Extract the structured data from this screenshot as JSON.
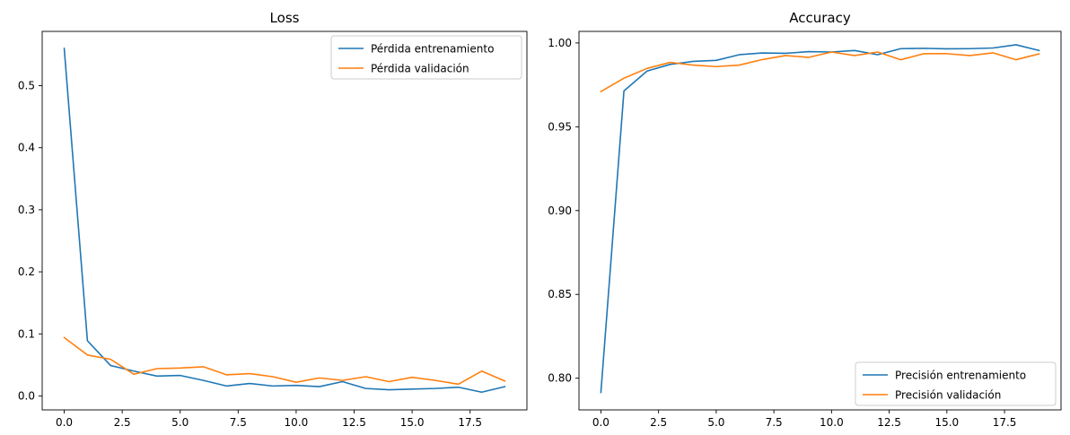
{
  "chart_data": [
    {
      "type": "line",
      "title": "Loss",
      "xlabel": "",
      "ylabel": "",
      "xlim": [
        -0.95,
        19.95
      ],
      "ylim": [
        -0.0225,
        0.5875
      ],
      "xticks": [
        0.0,
        2.5,
        5.0,
        7.5,
        10.0,
        12.5,
        15.0,
        17.5
      ],
      "yticks": [
        0.0,
        0.1,
        0.2,
        0.3,
        0.4,
        0.5
      ],
      "xtick_labels": [
        "0.0",
        "2.5",
        "5.0",
        "7.5",
        "10.0",
        "12.5",
        "15.0",
        "17.5"
      ],
      "ytick_labels": [
        "0.0",
        "0.1",
        "0.2",
        "0.3",
        "0.4",
        "0.5"
      ],
      "grid": false,
      "legend": "top-right",
      "x": [
        0,
        1,
        2,
        3,
        4,
        5,
        6,
        7,
        8,
        9,
        10,
        11,
        12,
        13,
        14,
        15,
        16,
        17,
        18,
        19
      ],
      "series": [
        {
          "name": "Pérdida entrenamiento",
          "color": "#1f77b4",
          "values": [
            0.56,
            0.089,
            0.049,
            0.04,
            0.032,
            0.033,
            0.025,
            0.016,
            0.02,
            0.016,
            0.017,
            0.015,
            0.023,
            0.012,
            0.01,
            0.011,
            0.012,
            0.014,
            0.006,
            0.015
          ]
        },
        {
          "name": "Pérdida validación",
          "color": "#ff7f0e",
          "values": [
            0.094,
            0.066,
            0.059,
            0.035,
            0.044,
            0.045,
            0.047,
            0.034,
            0.036,
            0.031,
            0.022,
            0.029,
            0.025,
            0.031,
            0.023,
            0.03,
            0.025,
            0.019,
            0.04,
            0.024
          ]
        }
      ]
    },
    {
      "type": "line",
      "title": "Accuracy",
      "xlabel": "",
      "ylabel": "",
      "xlim": [
        -0.95,
        19.95
      ],
      "ylim": [
        0.7811,
        1.0069
      ],
      "xticks": [
        0.0,
        2.5,
        5.0,
        7.5,
        10.0,
        12.5,
        15.0,
        17.5
      ],
      "yticks": [
        0.8,
        0.85,
        0.9,
        0.95,
        1.0
      ],
      "xtick_labels": [
        "0.0",
        "2.5",
        "5.0",
        "7.5",
        "10.0",
        "12.5",
        "15.0",
        "17.5"
      ],
      "ytick_labels": [
        "0.80",
        "0.85",
        "0.90",
        "0.95",
        "1.00"
      ],
      "grid": false,
      "legend": "bottom-right",
      "x": [
        0,
        1,
        2,
        3,
        4,
        5,
        6,
        7,
        8,
        9,
        10,
        11,
        12,
        13,
        14,
        15,
        16,
        17,
        18,
        19
      ],
      "series": [
        {
          "name": "Precisión entrenamiento",
          "color": "#1f77b4",
          "values": [
            0.7915,
            0.9714,
            0.9832,
            0.9872,
            0.989,
            0.9896,
            0.993,
            0.994,
            0.9938,
            0.9948,
            0.9946,
            0.9955,
            0.993,
            0.9966,
            0.9968,
            0.9965,
            0.9966,
            0.997,
            0.9989,
            0.9955
          ]
        },
        {
          "name": "Precisión validación",
          "color": "#ff7f0e",
          "values": [
            0.971,
            0.979,
            0.9848,
            0.9884,
            0.9868,
            0.9859,
            0.9868,
            0.9901,
            0.9925,
            0.9914,
            0.9946,
            0.9925,
            0.9946,
            0.99,
            0.9936,
            0.9936,
            0.9925,
            0.9941,
            0.99,
            0.9935
          ]
        }
      ]
    }
  ]
}
